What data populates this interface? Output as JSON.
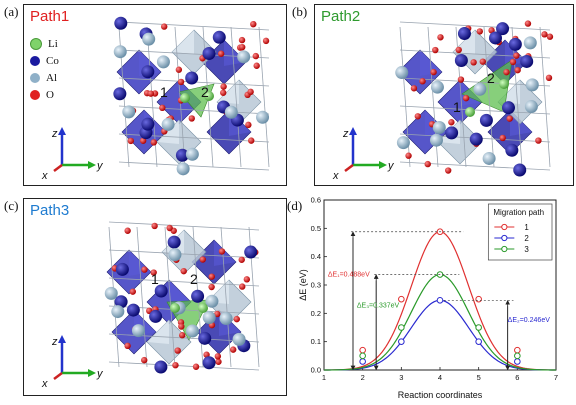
{
  "panels": {
    "a": {
      "letter": "(a)",
      "title": "Path1",
      "title_color": "#e02020"
    },
    "b": {
      "letter": "(b)",
      "title": "Path2",
      "title_color": "#2e9a2e"
    },
    "c": {
      "letter": "(c)",
      "title": "Path3",
      "title_color": "#1e7bd0"
    },
    "d": {
      "letter": "(d)"
    }
  },
  "legend_atoms": [
    {
      "label": "Li",
      "color": "#7fd36a"
    },
    {
      "label": "Co",
      "color": "#1a1aa0"
    },
    {
      "label": "Al",
      "color": "#8fb0c8"
    },
    {
      "label": "O",
      "color": "#e02020"
    }
  ],
  "site_labels": {
    "one": "1",
    "two": "2"
  },
  "axes_labels": {
    "z": "z",
    "y": "y",
    "x": "x"
  },
  "chart_data": {
    "type": "line",
    "xlabel": "Reaction coordinates",
    "ylabel": "ΔE (eV)",
    "xlim": [
      1,
      7
    ],
    "ylim": [
      0,
      0.6
    ],
    "xticks": [
      "1",
      "2",
      "3",
      "4",
      "5",
      "6",
      "7"
    ],
    "yticks": [
      "0.0",
      "0.1",
      "0.2",
      "0.3",
      "0.4",
      "0.5",
      "0.6"
    ],
    "legend_title": "Migration path",
    "legend_position": "top-right",
    "x_markers": [
      2,
      3,
      4,
      5,
      6
    ],
    "series": [
      {
        "name": "1",
        "color": "#e03030",
        "peak": 0.488,
        "markers": [
          0.07,
          0.25,
          0.488,
          0.25,
          0.07
        ]
      },
      {
        "name": "2",
        "color": "#2a2ad0",
        "peak": 0.246,
        "markers": [
          0.03,
          0.1,
          0.246,
          0.1,
          0.03
        ]
      },
      {
        "name": "3",
        "color": "#2a9a2a",
        "peak": 0.337,
        "markers": [
          0.05,
          0.15,
          0.337,
          0.15,
          0.05
        ]
      }
    ],
    "annotations": [
      {
        "text": "ΔE₁=0.488eV",
        "color": "#e03030",
        "value": 0.488
      },
      {
        "text": "ΔE₃=0.337eV",
        "color": "#2a9a2a",
        "value": 0.337
      },
      {
        "text": "ΔE₂=0.246eV",
        "color": "#2a2ad0",
        "value": 0.246
      }
    ]
  }
}
